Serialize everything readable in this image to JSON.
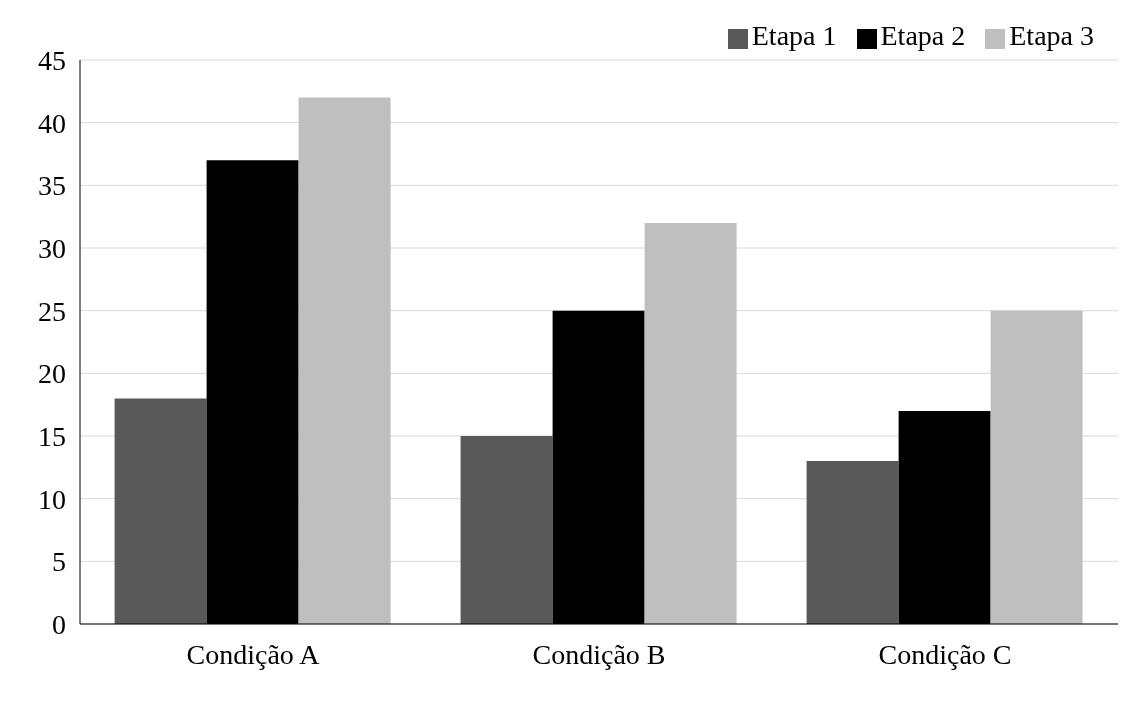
{
  "chart_data": {
    "type": "bar",
    "categories": [
      "Condição A",
      "Condição B",
      "Condição C"
    ],
    "series": [
      {
        "name": "Etapa 1",
        "color": "#595959",
        "values": [
          18,
          15,
          13
        ]
      },
      {
        "name": "Etapa 2",
        "color": "#000000",
        "values": [
          37,
          25,
          17
        ]
      },
      {
        "name": "Etapa 3",
        "color": "#bfbfbf",
        "values": [
          42,
          32,
          25
        ]
      }
    ],
    "ylim": [
      0,
      45
    ],
    "yticks": [
      0,
      5,
      10,
      15,
      20,
      25,
      30,
      35,
      40,
      45
    ],
    "grid": "y",
    "legend": "top right"
  }
}
